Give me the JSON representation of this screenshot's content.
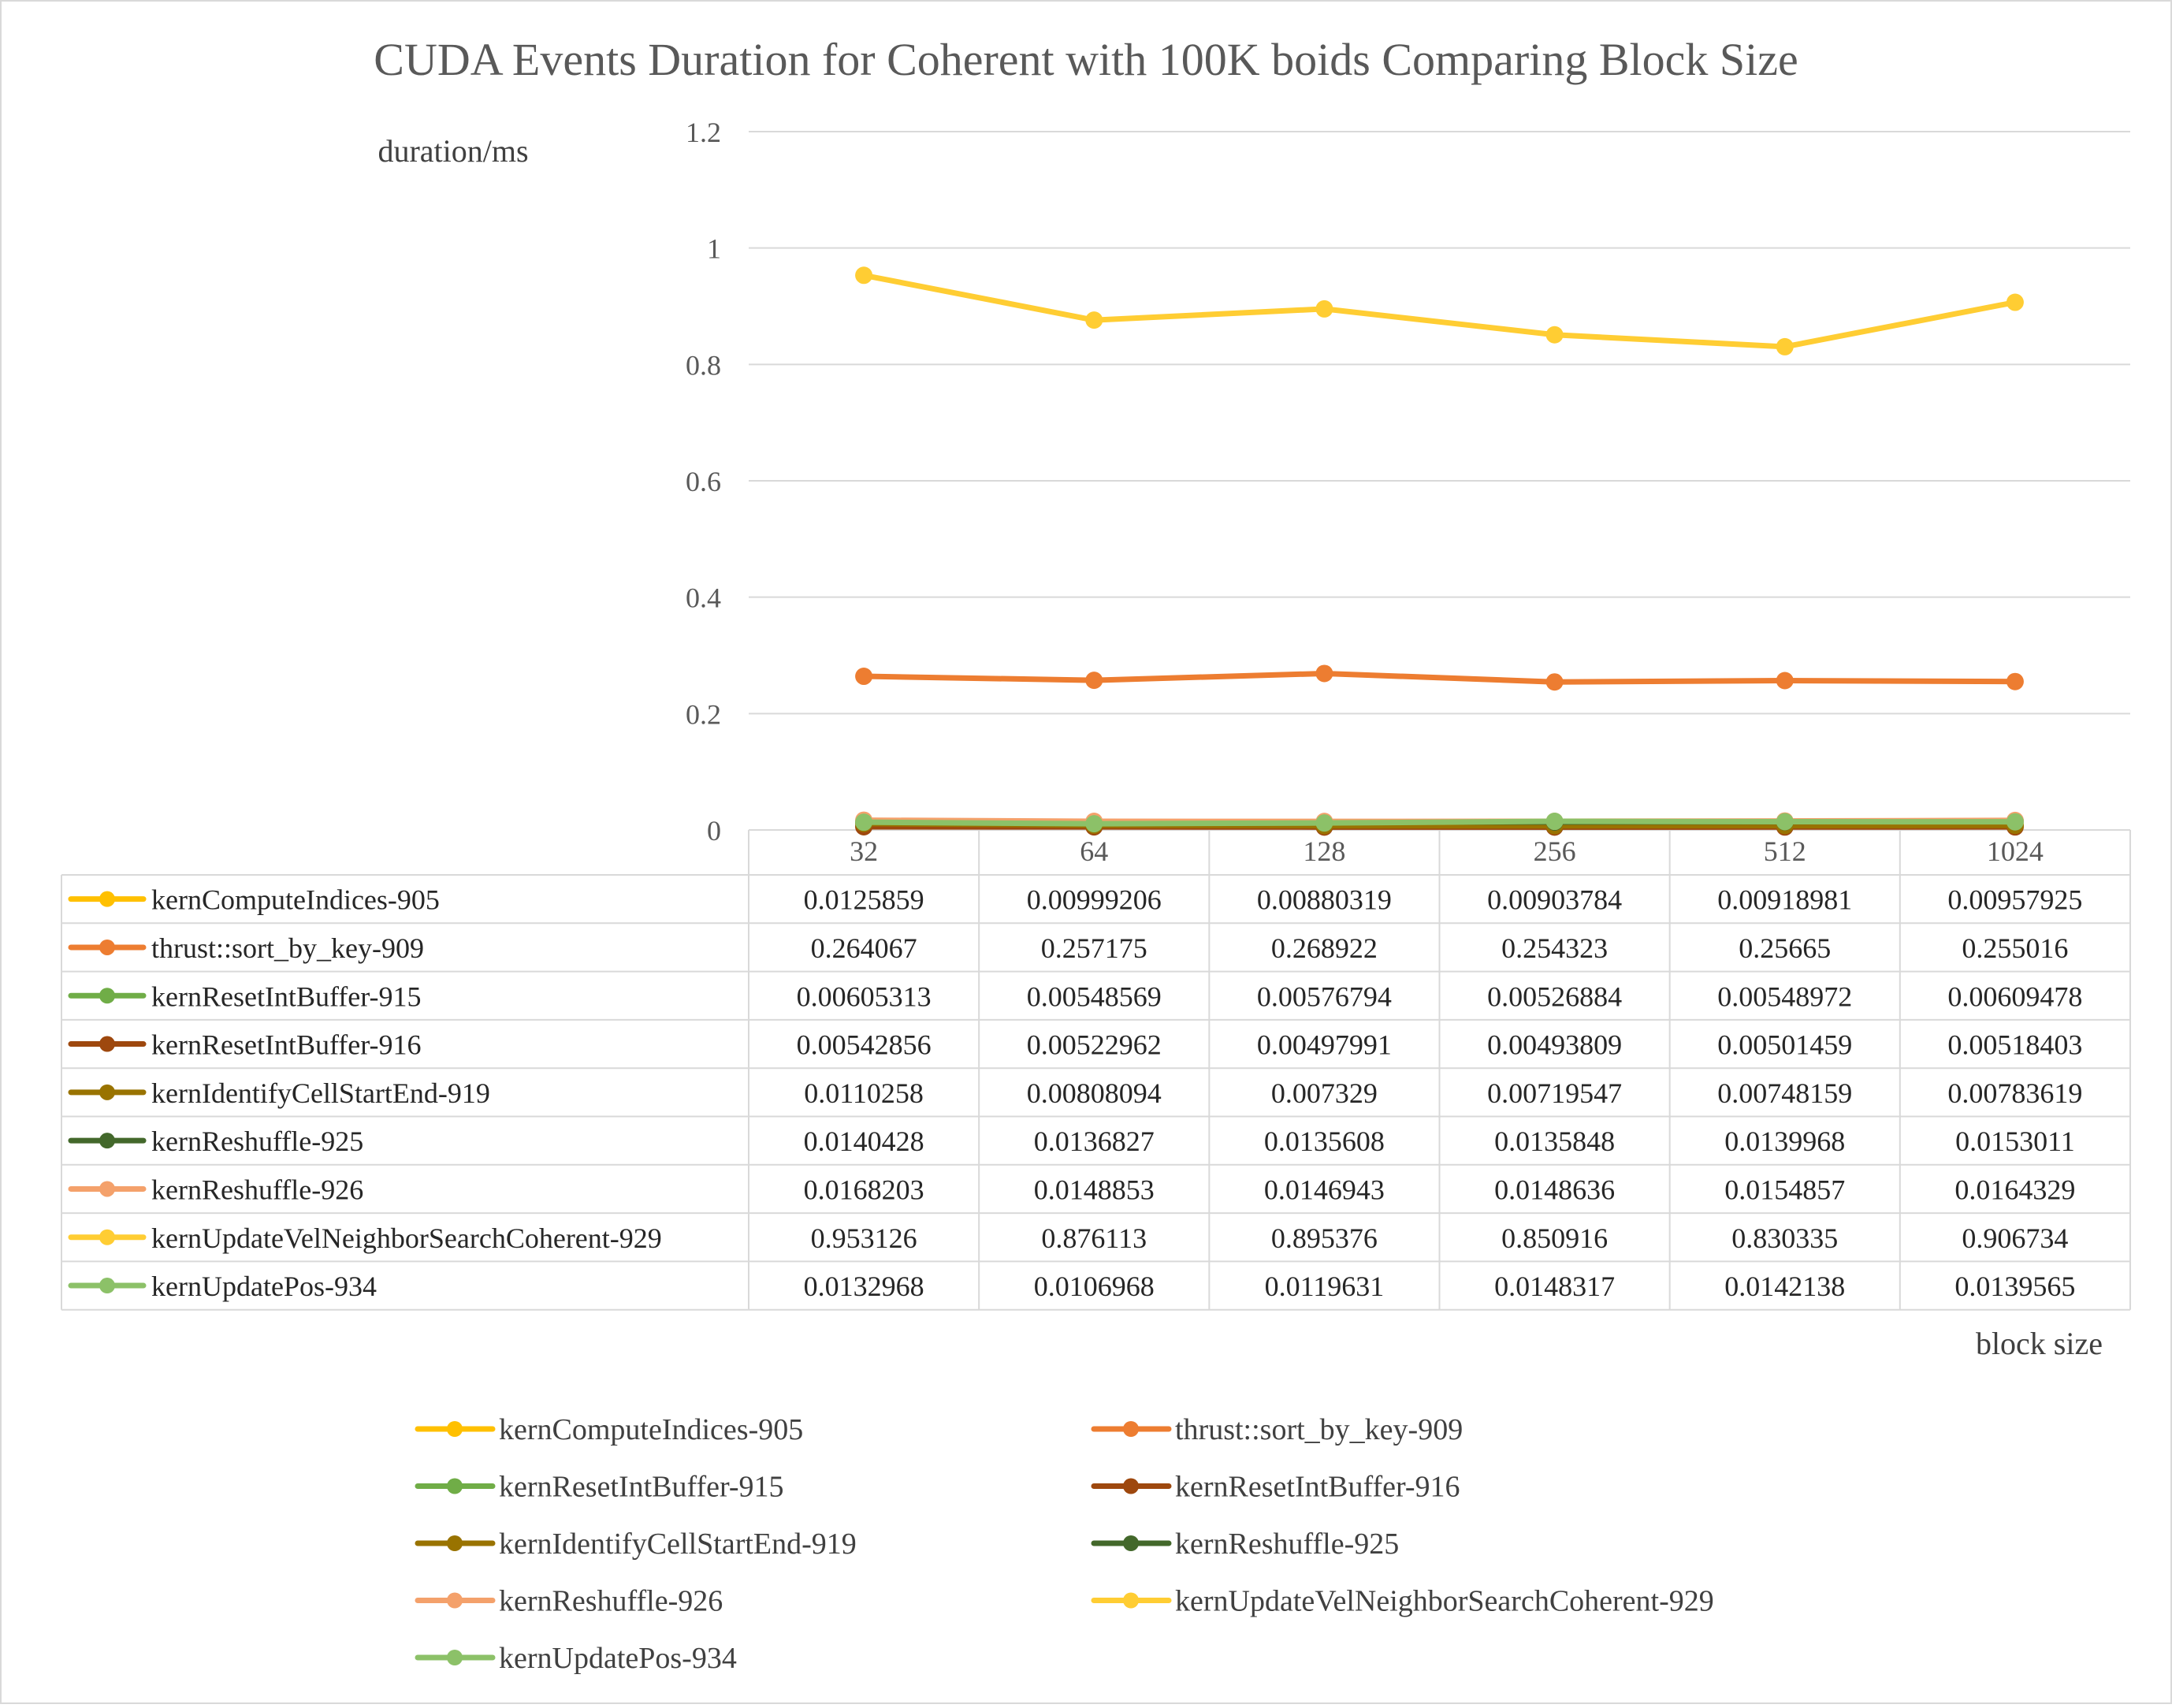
{
  "chart_data": {
    "type": "line",
    "title": "CUDA Events Duration for Coherent with 100K boids Comparing Block Size",
    "ylabel": "duration/ms",
    "xlabel": "block size",
    "ylim": [
      0,
      1.2
    ],
    "yticks": [
      "0",
      "0.2",
      "0.4",
      "0.6",
      "0.8",
      "1",
      "1.2"
    ],
    "yticks_values": [
      0,
      0.2,
      0.4,
      0.6,
      0.8,
      1.0,
      1.2
    ],
    "grid": true,
    "legend_position": "bottom",
    "data_table": true,
    "categories": [
      "32",
      "64",
      "128",
      "256",
      "512",
      "1024"
    ],
    "series": [
      {
        "name": "kernComputeIndices-905",
        "color": "#FFC000",
        "values": [
          0.0125859,
          0.00999206,
          0.00880319,
          0.00903784,
          0.00918981,
          0.00957925
        ],
        "labels": [
          "0.0125859",
          "0.00999206",
          "0.00880319",
          "0.00903784",
          "0.00918981",
          "0.00957925"
        ]
      },
      {
        "name": "thrust::sort_by_key-909",
        "color": "#ED7D31",
        "values": [
          0.264067,
          0.257175,
          0.268922,
          0.254323,
          0.25665,
          0.255016
        ],
        "labels": [
          "0.264067",
          "0.257175",
          "0.268922",
          "0.254323",
          "0.25665",
          "0.255016"
        ]
      },
      {
        "name": "kernResetIntBuffer-915",
        "color": "#70AD47",
        "values": [
          0.00605313,
          0.00548569,
          0.00576794,
          0.00526884,
          0.00548972,
          0.00609478
        ],
        "labels": [
          "0.00605313",
          "0.00548569",
          "0.00576794",
          "0.00526884",
          "0.00548972",
          "0.00609478"
        ]
      },
      {
        "name": "kernResetIntBuffer-916",
        "color": "#9E480E",
        "values": [
          0.00542856,
          0.00522962,
          0.00497991,
          0.00493809,
          0.00501459,
          0.00518403
        ],
        "labels": [
          "0.00542856",
          "0.00522962",
          "0.00497991",
          "0.00493809",
          "0.00501459",
          "0.00518403"
        ]
      },
      {
        "name": "kernIdentifyCellStartEnd-919",
        "color": "#997300",
        "values": [
          0.0110258,
          0.00808094,
          0.007329,
          0.00719547,
          0.00748159,
          0.00783619
        ],
        "labels": [
          "0.0110258",
          "0.00808094",
          "0.007329",
          "0.00719547",
          "0.00748159",
          "0.00783619"
        ]
      },
      {
        "name": "kernReshuffle-925",
        "color": "#43682B",
        "values": [
          0.0140428,
          0.0136827,
          0.0135608,
          0.0135848,
          0.0139968,
          0.0153011
        ],
        "labels": [
          "0.0140428",
          "0.0136827",
          "0.0135608",
          "0.0135848",
          "0.0139968",
          "0.0153011"
        ]
      },
      {
        "name": "kernReshuffle-926",
        "color": "#F4A16B",
        "values": [
          0.0168203,
          0.0148853,
          0.0146943,
          0.0148636,
          0.0154857,
          0.0164329
        ],
        "labels": [
          "0.0168203",
          "0.0148853",
          "0.0146943",
          "0.0148636",
          "0.0154857",
          "0.0164329"
        ]
      },
      {
        "name": "kernUpdateVelNeighborSearchCoherent-929",
        "color": "#FFCD33",
        "values": [
          0.953126,
          0.876113,
          0.895376,
          0.850916,
          0.830335,
          0.906734
        ],
        "labels": [
          "0.953126",
          "0.876113",
          "0.895376",
          "0.850916",
          "0.830335",
          "0.906734"
        ]
      },
      {
        "name": "kernUpdatePos-934",
        "color": "#8CC168",
        "values": [
          0.0132968,
          0.0106968,
          0.0119631,
          0.0148317,
          0.0142138,
          0.0139565
        ],
        "labels": [
          "0.0132968",
          "0.0106968",
          "0.0119631",
          "0.0148317",
          "0.0142138",
          "0.0139565"
        ]
      }
    ]
  }
}
